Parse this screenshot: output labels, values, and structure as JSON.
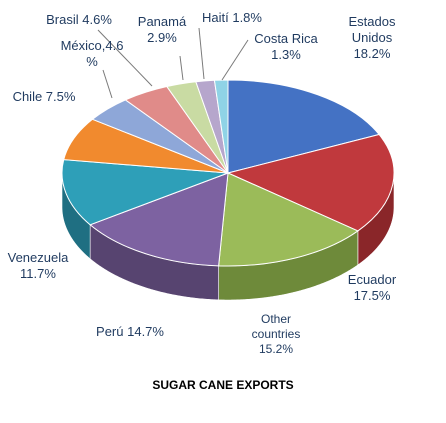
{
  "chart_data": {
    "type": "pie",
    "title": "SUGAR CANE EXPORTS",
    "slices": [
      {
        "label": "Estados Unidos",
        "value": 18.2,
        "value_text": "18.2%",
        "color": "#4472c4",
        "side": "#2e4f8c"
      },
      {
        "label": "Ecuador",
        "value": 17.5,
        "value_text": "17.5%",
        "color": "#c0393d",
        "side": "#8a2629"
      },
      {
        "label": "Other countries",
        "value": 15.2,
        "value_text": "15.2%",
        "color": "#9bbb59",
        "side": "#6e8a3a"
      },
      {
        "label": "Perú",
        "value": 14.7,
        "value_text": "14.7%",
        "color": "#7d62a1",
        "side": "#574470"
      },
      {
        "label": "Venezuela",
        "value": 11.7,
        "value_text": "11.7%",
        "color": "#2e9fb8",
        "side": "#1f6f82"
      },
      {
        "label": "Chile",
        "value": 7.5,
        "value_text": "7.5%",
        "color": "#f18a2e",
        "side": "#b3651f"
      },
      {
        "label": "México",
        "value": 4.6,
        "value_text": "4.6 %",
        "color": "#8ea7d8",
        "side": "#6277a0"
      },
      {
        "label": "Brasil",
        "value": 4.6,
        "value_text": "4.6%",
        "color": "#e08b89",
        "side": "#a86462"
      },
      {
        "label": "Panamá",
        "value": 2.9,
        "value_text": "2.9%",
        "color": "#c9dba3",
        "side": "#94a278"
      },
      {
        "label": "Haití",
        "value": 1.8,
        "value_text": "1.8%",
        "color": "#b6a6cc",
        "side": "#857897"
      },
      {
        "label": "Costa Rica",
        "value": 1.3,
        "value_text": "1.3%",
        "color": "#8fd3e6",
        "side": "#639ca8"
      }
    ],
    "legend": "none",
    "labels": [
      {
        "lines": [
          "Estados",
          "Unidos",
          "18.2%"
        ]
      },
      {
        "lines": [
          "Ecuador",
          "17.5%"
        ]
      },
      {
        "lines": [
          "Other",
          "countries",
          "15.2%"
        ]
      },
      {
        "lines": [
          "Perú 14.7%"
        ]
      },
      {
        "lines": [
          "Venezuela",
          "11.7%"
        ]
      },
      {
        "lines": [
          "Chile 7.5%"
        ]
      },
      {
        "lines": [
          "México,4.6",
          "%"
        ]
      },
      {
        "lines": [
          "Brasil 4.6%"
        ]
      },
      {
        "lines": [
          "Panamá",
          "2.9%"
        ]
      },
      {
        "lines": [
          "Haití 1.8%"
        ]
      },
      {
        "lines": [
          "Costa Rica",
          "1.3%"
        ]
      }
    ]
  }
}
